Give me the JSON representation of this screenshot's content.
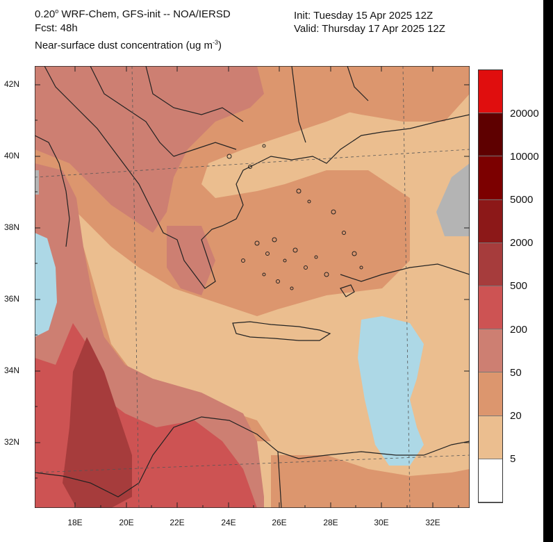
{
  "header": {
    "model_line_a": "0.20",
    "model_line_b": "WRF-Chem, GFS-init -- NOA/IERSD",
    "forecast": "Fcst: 48h",
    "variable_a": "Near-surface dust concentration (ug m",
    "variable_sup": "-3",
    "variable_b": ")",
    "init": "Init: Tuesday 15 Apr 2025  12Z",
    "valid": "Valid: Thursday 17 Apr 2025  12Z"
  },
  "map": {
    "lat_ticks": [
      "42N",
      "40N",
      "38N",
      "36N",
      "34N",
      "32N"
    ],
    "lon_ticks": [
      "18E",
      "20E",
      "22E",
      "24E",
      "26E",
      "28E",
      "30E",
      "32E"
    ],
    "regions": {
      "background_level": "5-20",
      "aegean_and_north": "20-50",
      "balkans_northwest": "50-200",
      "libya_coast": "200-500",
      "gulf_of_sirte": "500-2000",
      "missing_data_color": "#b4b4b4",
      "no_dust_color": "#add8e6"
    }
  },
  "colorbar": {
    "levels": [
      "20000",
      "10000",
      "5000",
      "2000",
      "500",
      "200",
      "50",
      "20",
      "5"
    ],
    "colors": [
      "#e00e0e",
      "#5e0000",
      "#7c0000",
      "#8c1818",
      "#a63c3c",
      "#cd5353",
      "#cd7f72",
      "#dc966e",
      "#ebbe8f",
      "#ffffff"
    ]
  }
}
